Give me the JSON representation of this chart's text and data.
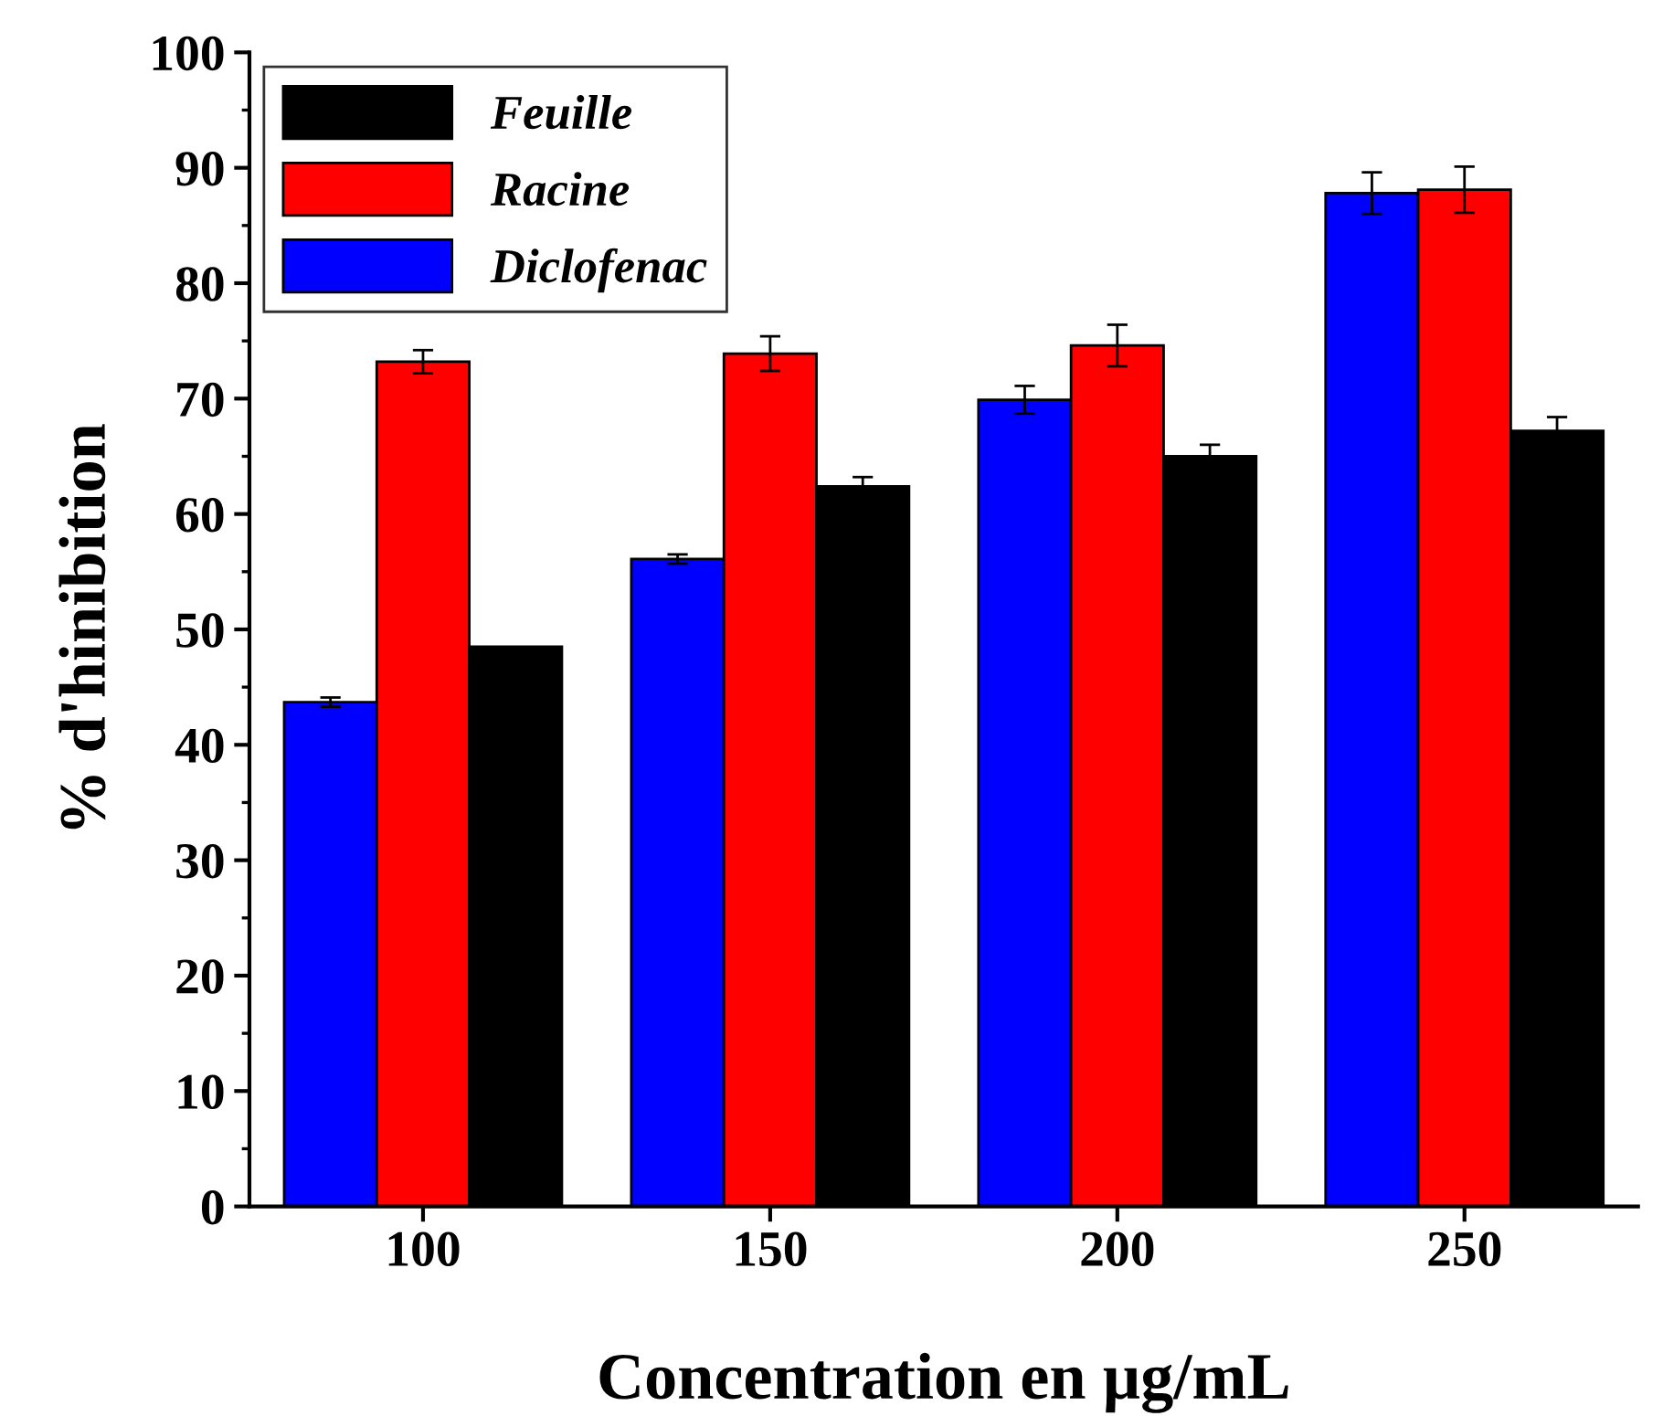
{
  "chart_data": {
    "type": "bar",
    "xlabel": "Concentration en µg/mL",
    "ylabel": "% d'hinibition",
    "categories": [
      "100",
      "150",
      "200",
      "250"
    ],
    "series": [
      {
        "name": "Diclofenac",
        "color": "#0000ff",
        "values": [
          43.7,
          56.1,
          69.9,
          87.8
        ],
        "errors": [
          0.4,
          0.4,
          1.2,
          1.8
        ]
      },
      {
        "name": "Racine",
        "color": "#ff0000",
        "values": [
          73.2,
          73.9,
          74.6,
          88.1
        ],
        "errors": [
          1.0,
          1.5,
          1.8,
          2.0
        ]
      },
      {
        "name": "Feuille",
        "color": "#000000",
        "values": [
          48.5,
          62.4,
          65.0,
          67.2
        ],
        "errors": [
          null,
          0.8,
          1.0,
          1.2
        ]
      }
    ],
    "ylim": [
      0,
      100
    ],
    "yticks": [
      0,
      10,
      20,
      30,
      40,
      50,
      60,
      70,
      80,
      90,
      100
    ],
    "legend": "top left",
    "grid": false
  }
}
